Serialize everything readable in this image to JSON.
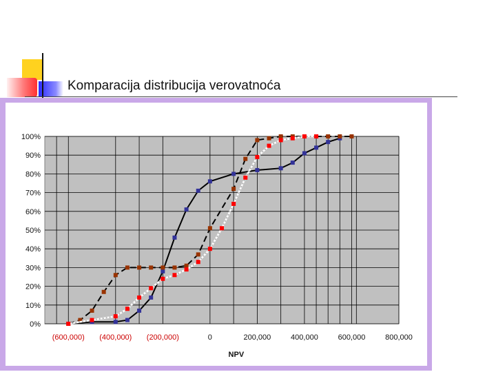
{
  "slide": {
    "title": "Komparacija distribucija verovatnoća"
  },
  "colors": {
    "frame": "#c9a8e8",
    "plot_bg": "#c0c0c0",
    "series_blue": "#333399",
    "series_brown": "#993300",
    "series_red": "#ff0000",
    "negative_tick": "#cc0000"
  },
  "chart_data": {
    "type": "line",
    "title": "",
    "xlabel": "NPV",
    "ylabel": "",
    "xlim": [
      -700000,
      800000
    ],
    "ylim": [
      0,
      1
    ],
    "grid": true,
    "legend": "none",
    "x_ticks": [
      {
        "value": -600000,
        "label": "(600,000)"
      },
      {
        "value": -400000,
        "label": "(400,000)"
      },
      {
        "value": -200000,
        "label": "(200,000)"
      },
      {
        "value": 0,
        "label": "0"
      },
      {
        "value": 200000,
        "label": "200,000"
      },
      {
        "value": 400000,
        "label": "400,000"
      },
      {
        "value": 600000,
        "label": "600,000"
      },
      {
        "value": 800000,
        "label": "800,000"
      }
    ],
    "y_ticks": [
      {
        "value": 0.0,
        "label": "0%"
      },
      {
        "value": 0.1,
        "label": "10%"
      },
      {
        "value": 0.2,
        "label": "20%"
      },
      {
        "value": 0.3,
        "label": "30%"
      },
      {
        "value": 0.4,
        "label": "40%"
      },
      {
        "value": 0.5,
        "label": "50%"
      },
      {
        "value": 0.6,
        "label": "60%"
      },
      {
        "value": 0.7,
        "label": "70%"
      },
      {
        "value": 0.8,
        "label": "80%"
      },
      {
        "value": 0.9,
        "label": "90%"
      },
      {
        "value": 1.0,
        "label": "100%"
      }
    ],
    "extra_vertical_gridlines": [
      -650000,
      -300000,
      100000,
      300000,
      450000,
      500000,
      550000,
      620000
    ],
    "series": [
      {
        "color": "#333399",
        "line_style": "solid",
        "marker": "square",
        "x": [
          -600000,
          -500000,
          -400000,
          -350000,
          -300000,
          -250000,
          -200000,
          -150000,
          -100000,
          -50000,
          0,
          100000,
          200000,
          300000,
          350000,
          400000,
          450000,
          500000,
          550000
        ],
        "y": [
          0.0,
          0.01,
          0.01,
          0.02,
          0.07,
          0.14,
          0.28,
          0.46,
          0.61,
          0.71,
          0.76,
          0.8,
          0.82,
          0.83,
          0.86,
          0.91,
          0.94,
          0.97,
          0.99
        ]
      },
      {
        "color": "#993300",
        "line_style": "dashed",
        "marker": "square",
        "x": [
          -600000,
          -550000,
          -500000,
          -450000,
          -400000,
          -350000,
          -300000,
          -250000,
          -200000,
          -150000,
          -100000,
          -50000,
          0,
          100000,
          150000,
          200000,
          250000,
          300000,
          350000,
          400000,
          450000,
          500000,
          550000,
          600000
        ],
        "y": [
          0.0,
          0.02,
          0.07,
          0.17,
          0.26,
          0.3,
          0.3,
          0.3,
          0.3,
          0.3,
          0.31,
          0.37,
          0.51,
          0.72,
          0.88,
          0.98,
          0.99,
          1.0,
          1.0,
          1.0,
          1.0,
          1.0,
          1.0,
          1.0
        ]
      },
      {
        "color": "#ff0000",
        "line_style": "dotted",
        "marker": "square",
        "x": [
          -600000,
          -500000,
          -400000,
          -350000,
          -300000,
          -250000,
          -200000,
          -150000,
          -100000,
          -50000,
          0,
          50000,
          100000,
          150000,
          200000,
          250000,
          300000,
          350000,
          400000,
          450000
        ],
        "y": [
          0.0,
          0.02,
          0.04,
          0.08,
          0.14,
          0.19,
          0.24,
          0.26,
          0.29,
          0.33,
          0.4,
          0.51,
          0.64,
          0.78,
          0.89,
          0.95,
          0.98,
          0.99,
          1.0,
          1.0
        ]
      }
    ]
  }
}
